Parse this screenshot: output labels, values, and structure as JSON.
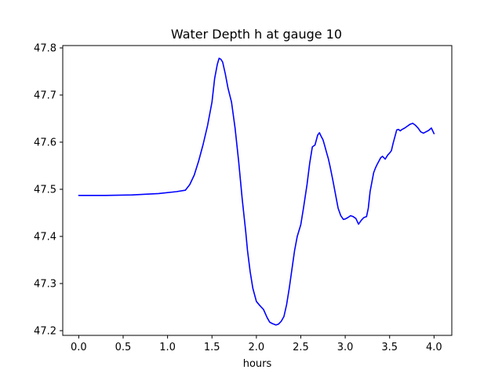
{
  "chart_data": {
    "type": "line",
    "title": "Water Depth h at gauge 10",
    "xlabel": "hours",
    "ylabel": "",
    "xlim": [
      -0.18,
      4.2
    ],
    "ylim": [
      47.19,
      47.805
    ],
    "xticks": [
      0.0,
      0.5,
      1.0,
      1.5,
      2.0,
      2.5,
      3.0,
      3.5,
      4.0
    ],
    "xtick_labels": [
      "0.0",
      "0.5",
      "1.0",
      "1.5",
      "2.0",
      "2.5",
      "3.0",
      "3.5",
      "4.0"
    ],
    "yticks": [
      47.2,
      47.3,
      47.4,
      47.5,
      47.6,
      47.7,
      47.8
    ],
    "ytick_labels": [
      "47.2",
      "47.3",
      "47.4",
      "47.5",
      "47.6",
      "47.7",
      "47.8"
    ],
    "grid": false,
    "series": [
      {
        "color": "#0000ff",
        "x": [
          0.0,
          0.3,
          0.6,
          0.9,
          1.1,
          1.2,
          1.25,
          1.3,
          1.35,
          1.4,
          1.45,
          1.5,
          1.53,
          1.56,
          1.58,
          1.6,
          1.62,
          1.65,
          1.68,
          1.72,
          1.76,
          1.8,
          1.84,
          1.88,
          1.9,
          1.93,
          1.96,
          2.0,
          2.04,
          2.08,
          2.12,
          2.15,
          2.18,
          2.22,
          2.25,
          2.28,
          2.31,
          2.34,
          2.37,
          2.4,
          2.43,
          2.46,
          2.5,
          2.53,
          2.57,
          2.6,
          2.63,
          2.66,
          2.69,
          2.71,
          2.73,
          2.75,
          2.77,
          2.79,
          2.81,
          2.83,
          2.86,
          2.89,
          2.92,
          2.95,
          2.98,
          3.0,
          3.03,
          3.06,
          3.09,
          3.12,
          3.15,
          3.18,
          3.21,
          3.24,
          3.26,
          3.28,
          3.3,
          3.32,
          3.34,
          3.36,
          3.38,
          3.4,
          3.42,
          3.45,
          3.48,
          3.5,
          3.52,
          3.54,
          3.56,
          3.58,
          3.6,
          3.62,
          3.64,
          3.67,
          3.7,
          3.73,
          3.76,
          3.79,
          3.82,
          3.85,
          3.88,
          3.91,
          3.94,
          3.97,
          4.0
        ],
        "y": [
          47.487,
          47.487,
          47.488,
          47.491,
          47.495,
          47.498,
          47.51,
          47.53,
          47.56,
          47.595,
          47.635,
          47.685,
          47.735,
          47.765,
          47.778,
          47.776,
          47.77,
          47.745,
          47.715,
          47.685,
          47.63,
          47.56,
          47.48,
          47.41,
          47.37,
          47.325,
          47.29,
          47.262,
          47.253,
          47.245,
          47.228,
          47.218,
          47.215,
          47.212,
          47.214,
          47.22,
          47.23,
          47.255,
          47.29,
          47.33,
          47.37,
          47.4,
          47.425,
          47.46,
          47.51,
          47.555,
          47.59,
          47.594,
          47.615,
          47.62,
          47.612,
          47.605,
          47.592,
          47.578,
          47.565,
          47.548,
          47.52,
          47.49,
          47.46,
          47.444,
          47.436,
          47.437,
          47.44,
          47.444,
          47.442,
          47.438,
          47.426,
          47.434,
          47.44,
          47.442,
          47.46,
          47.495,
          47.515,
          47.535,
          47.545,
          47.553,
          47.56,
          47.567,
          47.57,
          47.564,
          47.573,
          47.577,
          47.582,
          47.598,
          47.612,
          47.626,
          47.627,
          47.624,
          47.627,
          47.63,
          47.634,
          47.638,
          47.64,
          47.636,
          47.63,
          47.622,
          47.619,
          47.622,
          47.625,
          47.63,
          47.618
        ]
      }
    ]
  }
}
